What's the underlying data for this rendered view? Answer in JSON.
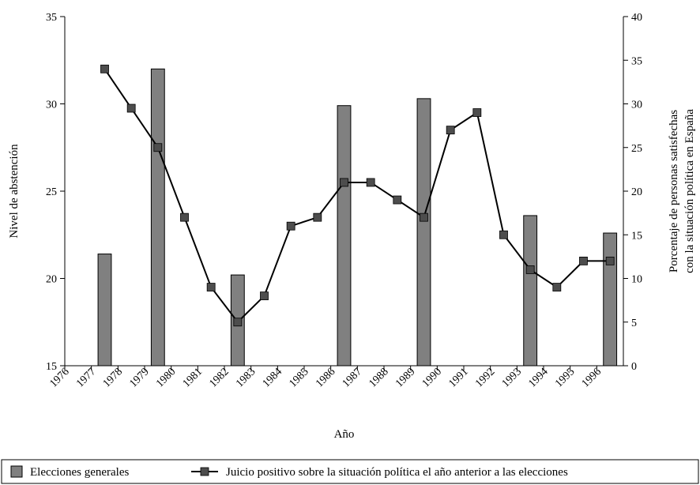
{
  "chart_data": {
    "type": "bar+line",
    "title": "",
    "xlabel": "Año",
    "ylabel_left": "Nivel de abstención",
    "ylabel_right_lines": [
      "Porcentaje de personas satisfechas",
      "con la situación política en España"
    ],
    "x_ticks": [
      "1976",
      "1977",
      "1978",
      "1979",
      "1980",
      "1981",
      "1982",
      "1983",
      "1984",
      "1985",
      "1986",
      "1987",
      "1988",
      "1989",
      "1990",
      "1991",
      "1992",
      "1993",
      "1994",
      "1995",
      "1996"
    ],
    "ylim_left": [
      15,
      35
    ],
    "yticks_left": [
      15,
      20,
      25,
      30,
      35
    ],
    "ylim_right": [
      0,
      40
    ],
    "yticks_right": [
      0,
      5,
      10,
      15,
      20,
      25,
      30,
      35,
      40
    ],
    "grid": false,
    "legend_position": "bottom",
    "series": [
      {
        "name": "Elecciones generales",
        "type": "bar",
        "axis": "left",
        "color": "#808080",
        "points": [
          {
            "x": 1977.5,
            "y": 21.4
          },
          {
            "x": 1979.5,
            "y": 32.0
          },
          {
            "x": 1982.5,
            "y": 20.2
          },
          {
            "x": 1986.5,
            "y": 29.9
          },
          {
            "x": 1989.5,
            "y": 30.3
          },
          {
            "x": 1993.5,
            "y": 23.6
          },
          {
            "x": 1996.5,
            "y": 22.6
          }
        ]
      },
      {
        "name": "Juicio positivo sobre la situación política el año anterior a las elecciones",
        "type": "line",
        "axis": "right",
        "color": "#000000",
        "marker_color": "#4d4d4d",
        "points": [
          {
            "x": 1977.5,
            "y": 34
          },
          {
            "x": 1978.5,
            "y": 29.5
          },
          {
            "x": 1979.5,
            "y": 25
          },
          {
            "x": 1980.5,
            "y": 17
          },
          {
            "x": 1981.5,
            "y": 9
          },
          {
            "x": 1982.5,
            "y": 5
          },
          {
            "x": 1983.5,
            "y": 8
          },
          {
            "x": 1984.5,
            "y": 16
          },
          {
            "x": 1985.5,
            "y": 17
          },
          {
            "x": 1986.5,
            "y": 21
          },
          {
            "x": 1987.5,
            "y": 21
          },
          {
            "x": 1988.5,
            "y": 19
          },
          {
            "x": 1989.5,
            "y": 17
          },
          {
            "x": 1990.5,
            "y": 27
          },
          {
            "x": 1991.5,
            "y": 29
          },
          {
            "x": 1992.5,
            "y": 15
          },
          {
            "x": 1993.5,
            "y": 11
          },
          {
            "x": 1994.5,
            "y": 9
          },
          {
            "x": 1995.5,
            "y": 12
          },
          {
            "x": 1996.5,
            "y": 12
          }
        ]
      }
    ]
  }
}
